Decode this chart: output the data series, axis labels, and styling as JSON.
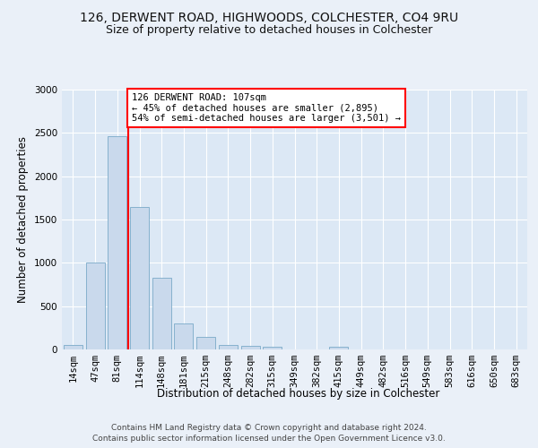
{
  "title": "126, DERWENT ROAD, HIGHWOODS, COLCHESTER, CO4 9RU",
  "subtitle": "Size of property relative to detached houses in Colchester",
  "xlabel": "Distribution of detached houses by size in Colchester",
  "ylabel": "Number of detached properties",
  "categories": [
    "14sqm",
    "47sqm",
    "81sqm",
    "114sqm",
    "148sqm",
    "181sqm",
    "215sqm",
    "248sqm",
    "282sqm",
    "315sqm",
    "349sqm",
    "382sqm",
    "415sqm",
    "449sqm",
    "482sqm",
    "516sqm",
    "549sqm",
    "583sqm",
    "616sqm",
    "650sqm",
    "683sqm"
  ],
  "values": [
    55,
    1000,
    2460,
    1650,
    830,
    300,
    150,
    55,
    40,
    30,
    0,
    0,
    35,
    0,
    0,
    0,
    0,
    0,
    0,
    0,
    0
  ],
  "bar_color": "#c9d9ec",
  "bar_edge_color": "#7aaac8",
  "vline_color": "red",
  "vline_x_index": 2,
  "annotation_text": "126 DERWENT ROAD: 107sqm\n← 45% of detached houses are smaller (2,895)\n54% of semi-detached houses are larger (3,501) →",
  "annotation_box_color": "white",
  "annotation_box_edge": "red",
  "ylim": [
    0,
    3000
  ],
  "yticks": [
    0,
    500,
    1000,
    1500,
    2000,
    2500,
    3000
  ],
  "background_color": "#eaf0f8",
  "plot_bg_color": "#dce8f5",
  "grid_color": "#ffffff",
  "footer1": "Contains HM Land Registry data © Crown copyright and database right 2024.",
  "footer2": "Contains public sector information licensed under the Open Government Licence v3.0.",
  "title_fontsize": 10,
  "subtitle_fontsize": 9,
  "xlabel_fontsize": 8.5,
  "ylabel_fontsize": 8.5,
  "tick_fontsize": 7.5,
  "annotation_fontsize": 7.5,
  "footer_fontsize": 6.5
}
